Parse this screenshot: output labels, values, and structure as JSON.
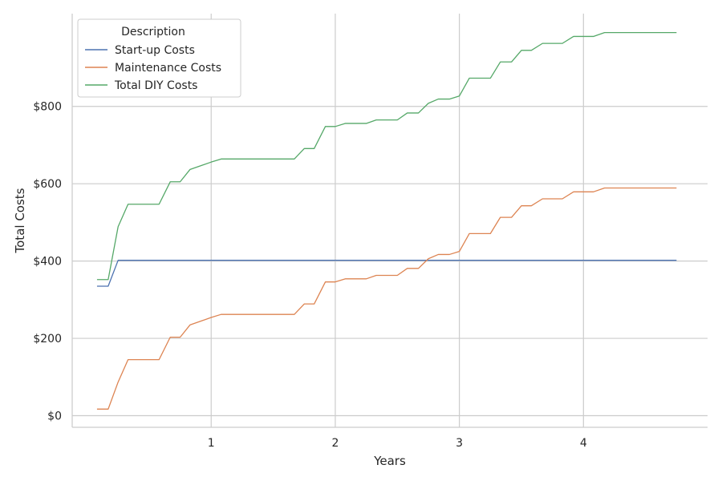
{
  "chart_data": {
    "type": "line",
    "xlabel": "Years",
    "ylabel": "Total Costs",
    "xlim": [
      -0.12,
      5.0
    ],
    "ylim": [
      -30,
      1040
    ],
    "xticks": [
      1,
      2,
      3,
      4
    ],
    "xtick_labels": [
      "1",
      "2",
      "3",
      "4"
    ],
    "yticks": [
      0,
      200,
      400,
      600,
      800
    ],
    "ytick_labels": [
      "$0",
      "$200",
      "$400",
      "$600",
      "$800"
    ],
    "grid": true,
    "legend": {
      "title": "Description",
      "placement": "top-left"
    },
    "series": [
      {
        "name": "Start-up Costs",
        "color": "#4c72b0",
        "points": [
          [
            0.08,
            335
          ],
          [
            0.17,
            335
          ],
          [
            0.25,
            402
          ],
          [
            0.33,
            402
          ],
          [
            4.75,
            402
          ]
        ]
      },
      {
        "name": "Maintenance Costs",
        "color": "#dd8452",
        "points": [
          [
            0.08,
            17
          ],
          [
            0.17,
            17
          ],
          [
            0.25,
            87
          ],
          [
            0.33,
            145
          ],
          [
            0.42,
            145
          ],
          [
            0.5,
            145
          ],
          [
            0.58,
            145
          ],
          [
            0.67,
            203
          ],
          [
            0.75,
            203
          ],
          [
            0.83,
            235
          ],
          [
            0.92,
            245
          ],
          [
            1.0,
            254
          ],
          [
            1.08,
            262
          ],
          [
            1.17,
            262
          ],
          [
            1.25,
            262
          ],
          [
            1.33,
            262
          ],
          [
            1.42,
            262
          ],
          [
            1.5,
            262
          ],
          [
            1.58,
            262
          ],
          [
            1.67,
            262
          ],
          [
            1.75,
            289
          ],
          [
            1.83,
            289
          ],
          [
            1.92,
            346
          ],
          [
            2.0,
            346
          ],
          [
            2.08,
            354
          ],
          [
            2.17,
            354
          ],
          [
            2.25,
            354
          ],
          [
            2.33,
            363
          ],
          [
            2.42,
            363
          ],
          [
            2.5,
            363
          ],
          [
            2.58,
            381
          ],
          [
            2.67,
            381
          ],
          [
            2.75,
            406
          ],
          [
            2.83,
            417
          ],
          [
            2.92,
            417
          ],
          [
            3.0,
            425
          ],
          [
            3.08,
            471
          ],
          [
            3.17,
            471
          ],
          [
            3.25,
            471
          ],
          [
            3.33,
            513
          ],
          [
            3.42,
            513
          ],
          [
            3.5,
            543
          ],
          [
            3.58,
            543
          ],
          [
            3.67,
            561
          ],
          [
            3.75,
            561
          ],
          [
            3.83,
            561
          ],
          [
            3.92,
            579
          ],
          [
            4.0,
            579
          ],
          [
            4.08,
            579
          ],
          [
            4.17,
            589
          ],
          [
            4.25,
            589
          ],
          [
            4.33,
            589
          ],
          [
            4.42,
            589
          ],
          [
            4.5,
            589
          ],
          [
            4.58,
            589
          ],
          [
            4.67,
            589
          ],
          [
            4.75,
            589
          ]
        ]
      },
      {
        "name": "Total DIY Costs",
        "color": "#55a868",
        "points": [
          [
            0.08,
            352
          ],
          [
            0.17,
            352
          ],
          [
            0.25,
            489
          ],
          [
            0.33,
            547
          ],
          [
            0.42,
            547
          ],
          [
            0.5,
            547
          ],
          [
            0.58,
            547
          ],
          [
            0.67,
            605
          ],
          [
            0.75,
            605
          ],
          [
            0.83,
            637
          ],
          [
            0.92,
            647
          ],
          [
            1.0,
            656
          ],
          [
            1.08,
            664
          ],
          [
            1.17,
            664
          ],
          [
            1.25,
            664
          ],
          [
            1.33,
            664
          ],
          [
            1.42,
            664
          ],
          [
            1.5,
            664
          ],
          [
            1.58,
            664
          ],
          [
            1.67,
            664
          ],
          [
            1.75,
            691
          ],
          [
            1.83,
            691
          ],
          [
            1.92,
            748
          ],
          [
            2.0,
            748
          ],
          [
            2.08,
            756
          ],
          [
            2.17,
            756
          ],
          [
            2.25,
            756
          ],
          [
            2.33,
            765
          ],
          [
            2.42,
            765
          ],
          [
            2.5,
            765
          ],
          [
            2.58,
            783
          ],
          [
            2.67,
            783
          ],
          [
            2.75,
            808
          ],
          [
            2.83,
            819
          ],
          [
            2.92,
            819
          ],
          [
            3.0,
            827
          ],
          [
            3.08,
            873
          ],
          [
            3.17,
            873
          ],
          [
            3.25,
            873
          ],
          [
            3.33,
            915
          ],
          [
            3.42,
            915
          ],
          [
            3.5,
            945
          ],
          [
            3.58,
            945
          ],
          [
            3.67,
            963
          ],
          [
            3.75,
            963
          ],
          [
            3.83,
            963
          ],
          [
            3.92,
            981
          ],
          [
            4.0,
            981
          ],
          [
            4.08,
            981
          ],
          [
            4.17,
            991
          ],
          [
            4.25,
            991
          ],
          [
            4.33,
            991
          ],
          [
            4.42,
            991
          ],
          [
            4.5,
            991
          ],
          [
            4.58,
            991
          ],
          [
            4.67,
            991
          ],
          [
            4.75,
            991
          ]
        ]
      }
    ]
  }
}
